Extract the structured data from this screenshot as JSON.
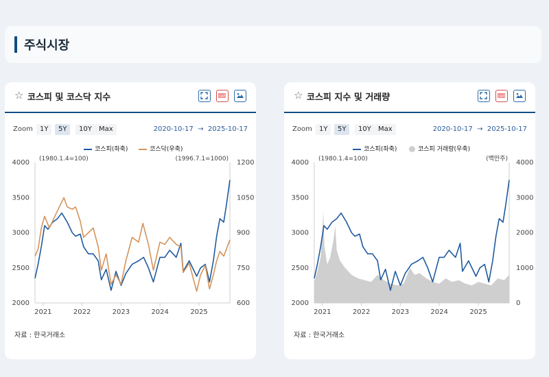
{
  "section": {
    "title": "주식시장"
  },
  "panels": [
    {
      "title": "코스피 및 코스닥 지수",
      "zoom_label": "Zoom",
      "zoom_options": [
        "1Y",
        "5Y",
        "10Y",
        "Max"
      ],
      "zoom_active": "5Y",
      "date_from": "2020-10-17",
      "date_arrow": "→",
      "date_to": "2025-10-17",
      "source": "자료 : 한국거래소",
      "icons": [
        "fullscreen-icon",
        "data-download-icon",
        "image-download-icon"
      ]
    },
    {
      "title": "코스피 지수 및 거래량",
      "zoom_label": "Zoom",
      "zoom_options": [
        "1Y",
        "5Y",
        "10Y",
        "Max"
      ],
      "zoom_active": "5Y",
      "date_from": "2020-10-17",
      "date_arrow": "→",
      "date_to": "2025-10-17",
      "source": "자료 : 한국거래소",
      "icons": [
        "fullscreen-icon",
        "data-download-icon",
        "image-download-icon"
      ]
    }
  ],
  "colors": {
    "kospi": "#1f5a9e",
    "kosdaq": "#d4935a",
    "volume": "#cfcfcf",
    "accent": "#0f4c81"
  },
  "chart_data": [
    {
      "type": "line",
      "x_axis_type": "date",
      "x_range": [
        "2020-10-17",
        "2025-10-17"
      ],
      "x_ticks": [
        "2021",
        "2022",
        "2023",
        "2024",
        "2025"
      ],
      "left_axis": {
        "range": [
          2000,
          4000
        ],
        "ticks": [
          "2000",
          "2500",
          "3000",
          "3500",
          "4000"
        ],
        "note": "(1980.1.4=100)"
      },
      "right_axis": {
        "range": [
          600,
          1200
        ],
        "ticks": [
          "600",
          "750",
          "900",
          "1050",
          "1200"
        ],
        "note": "(1996.7.1=1000)"
      },
      "grid": false,
      "legend_position": "top",
      "series": [
        {
          "name": "코스피(좌축)",
          "axis": "left",
          "points": [
            [
              "2020-10-17",
              2350
            ],
            [
              "2020-11-15",
              2550
            ],
            [
              "2020-12-15",
              2800
            ],
            [
              "2021-01-15",
              3100
            ],
            [
              "2021-02-15",
              3050
            ],
            [
              "2021-04-01",
              3150
            ],
            [
              "2021-05-15",
              3200
            ],
            [
              "2021-06-25",
              3280
            ],
            [
              "2021-08-15",
              3150
            ],
            [
              "2021-10-01",
              3000
            ],
            [
              "2021-11-01",
              2950
            ],
            [
              "2021-12-15",
              2980
            ],
            [
              "2022-01-15",
              2800
            ],
            [
              "2022-03-01",
              2700
            ],
            [
              "2022-04-15",
              2700
            ],
            [
              "2022-06-01",
              2600
            ],
            [
              "2022-07-01",
              2330
            ],
            [
              "2022-08-15",
              2480
            ],
            [
              "2022-09-30",
              2180
            ],
            [
              "2022-11-15",
              2450
            ],
            [
              "2023-01-01",
              2250
            ],
            [
              "2023-02-15",
              2420
            ],
            [
              "2023-04-15",
              2550
            ],
            [
              "2023-06-15",
              2600
            ],
            [
              "2023-08-01",
              2650
            ],
            [
              "2023-09-15",
              2500
            ],
            [
              "2023-10-31",
              2300
            ],
            [
              "2023-12-31",
              2650
            ],
            [
              "2024-02-15",
              2650
            ],
            [
              "2024-04-01",
              2750
            ],
            [
              "2024-06-01",
              2650
            ],
            [
              "2024-07-15",
              2850
            ],
            [
              "2024-08-05",
              2450
            ],
            [
              "2024-10-01",
              2600
            ],
            [
              "2024-12-10",
              2380
            ],
            [
              "2025-01-15",
              2500
            ],
            [
              "2025-03-01",
              2550
            ],
            [
              "2025-04-09",
              2300
            ],
            [
              "2025-05-15",
              2600
            ],
            [
              "2025-06-15",
              2950
            ],
            [
              "2025-07-15",
              3200
            ],
            [
              "2025-08-20",
              3150
            ],
            [
              "2025-09-15",
              3400
            ],
            [
              "2025-10-17",
              3750
            ]
          ]
        },
        {
          "name": "코스닥(우축)",
          "axis": "right",
          "points": [
            [
              "2020-10-17",
              800
            ],
            [
              "2020-11-15",
              830
            ],
            [
              "2020-12-15",
              920
            ],
            [
              "2021-01-15",
              970
            ],
            [
              "2021-03-01",
              920
            ],
            [
              "2021-05-01",
              980
            ],
            [
              "2021-07-15",
              1050
            ],
            [
              "2021-08-15",
              1010
            ],
            [
              "2021-10-01",
              1000
            ],
            [
              "2021-11-01",
              1010
            ],
            [
              "2021-12-15",
              950
            ],
            [
              "2022-01-15",
              880
            ],
            [
              "2022-03-01",
              900
            ],
            [
              "2022-04-15",
              920
            ],
            [
              "2022-06-01",
              840
            ],
            [
              "2022-07-01",
              740
            ],
            [
              "2022-08-15",
              810
            ],
            [
              "2022-09-30",
              680
            ],
            [
              "2022-11-15",
              720
            ],
            [
              "2023-01-01",
              680
            ],
            [
              "2023-02-15",
              780
            ],
            [
              "2023-04-15",
              880
            ],
            [
              "2023-06-15",
              860
            ],
            [
              "2023-07-25",
              940
            ],
            [
              "2023-09-15",
              850
            ],
            [
              "2023-10-31",
              740
            ],
            [
              "2023-12-31",
              860
            ],
            [
              "2024-02-15",
              850
            ],
            [
              "2024-04-01",
              880
            ],
            [
              "2024-06-01",
              850
            ],
            [
              "2024-07-15",
              840
            ],
            [
              "2024-08-05",
              730
            ],
            [
              "2024-10-01",
              770
            ],
            [
              "2024-12-10",
              650
            ],
            [
              "2025-01-15",
              720
            ],
            [
              "2025-03-01",
              760
            ],
            [
              "2025-04-09",
              660
            ],
            [
              "2025-05-15",
              720
            ],
            [
              "2025-06-15",
              780
            ],
            [
              "2025-07-15",
              820
            ],
            [
              "2025-08-20",
              800
            ],
            [
              "2025-09-15",
              830
            ],
            [
              "2025-10-17",
              870
            ]
          ]
        }
      ]
    },
    {
      "type": "line",
      "x_axis_type": "date",
      "x_range": [
        "2020-10-17",
        "2025-10-17"
      ],
      "x_ticks": [
        "2021",
        "2022",
        "2023",
        "2024",
        "2025"
      ],
      "left_axis": {
        "range": [
          2000,
          4000
        ],
        "ticks": [
          "2000",
          "2500",
          "3000",
          "3500",
          "4000"
        ],
        "note": "(1980.1.4=100)"
      },
      "right_axis": {
        "range": [
          0,
          4000
        ],
        "ticks": [
          "0",
          "1000",
          "2000",
          "3000",
          "4000"
        ],
        "note": "(백만주)"
      },
      "grid": false,
      "legend_position": "top",
      "series": [
        {
          "name": "코스피(좌축)",
          "axis": "left",
          "kind": "line",
          "points": [
            [
              "2020-10-17",
              2350
            ],
            [
              "2020-11-15",
              2550
            ],
            [
              "2020-12-15",
              2800
            ],
            [
              "2021-01-15",
              3100
            ],
            [
              "2021-02-15",
              3050
            ],
            [
              "2021-04-01",
              3150
            ],
            [
              "2021-05-15",
              3200
            ],
            [
              "2021-06-25",
              3280
            ],
            [
              "2021-08-15",
              3150
            ],
            [
              "2021-10-01",
              3000
            ],
            [
              "2021-11-01",
              2950
            ],
            [
              "2021-12-15",
              2980
            ],
            [
              "2022-01-15",
              2800
            ],
            [
              "2022-03-01",
              2700
            ],
            [
              "2022-04-15",
              2700
            ],
            [
              "2022-06-01",
              2600
            ],
            [
              "2022-07-01",
              2330
            ],
            [
              "2022-08-15",
              2480
            ],
            [
              "2022-09-30",
              2180
            ],
            [
              "2022-11-15",
              2450
            ],
            [
              "2023-01-01",
              2250
            ],
            [
              "2023-02-15",
              2420
            ],
            [
              "2023-04-15",
              2550
            ],
            [
              "2023-06-15",
              2600
            ],
            [
              "2023-08-01",
              2650
            ],
            [
              "2023-09-15",
              2500
            ],
            [
              "2023-10-31",
              2300
            ],
            [
              "2023-12-31",
              2650
            ],
            [
              "2024-02-15",
              2650
            ],
            [
              "2024-04-01",
              2750
            ],
            [
              "2024-06-01",
              2650
            ],
            [
              "2024-07-15",
              2850
            ],
            [
              "2024-08-05",
              2450
            ],
            [
              "2024-10-01",
              2600
            ],
            [
              "2024-12-10",
              2380
            ],
            [
              "2025-01-15",
              2500
            ],
            [
              "2025-03-01",
              2550
            ],
            [
              "2025-04-09",
              2300
            ],
            [
              "2025-05-15",
              2600
            ],
            [
              "2025-06-15",
              2950
            ],
            [
              "2025-07-15",
              3200
            ],
            [
              "2025-08-20",
              3150
            ],
            [
              "2025-09-15",
              3400
            ],
            [
              "2025-10-17",
              3750
            ]
          ]
        },
        {
          "name": "코스피 거래량(우축)",
          "axis": "right",
          "kind": "area",
          "points": [
            [
              "2020-10-17",
              600
            ],
            [
              "2020-11-15",
              900
            ],
            [
              "2020-12-15",
              1300
            ],
            [
              "2021-01-10",
              2600
            ],
            [
              "2021-01-20",
              1600
            ],
            [
              "2021-02-15",
              1100
            ],
            [
              "2021-03-15",
              1300
            ],
            [
              "2021-04-15",
              1800
            ],
            [
              "2021-05-01",
              2200
            ],
            [
              "2021-05-15",
              1500
            ],
            [
              "2021-06-15",
              1200
            ],
            [
              "2021-08-01",
              1000
            ],
            [
              "2021-10-01",
              800
            ],
            [
              "2021-12-01",
              700
            ],
            [
              "2022-02-01",
              650
            ],
            [
              "2022-04-01",
              600
            ],
            [
              "2022-06-01",
              800
            ],
            [
              "2022-08-01",
              650
            ],
            [
              "2022-10-01",
              550
            ],
            [
              "2022-12-01",
              500
            ],
            [
              "2023-02-01",
              550
            ],
            [
              "2023-04-01",
              1000
            ],
            [
              "2023-05-15",
              800
            ],
            [
              "2023-07-01",
              850
            ],
            [
              "2023-09-01",
              700
            ],
            [
              "2023-11-01",
              600
            ],
            [
              "2024-01-01",
              550
            ],
            [
              "2024-03-01",
              700
            ],
            [
              "2024-05-01",
              600
            ],
            [
              "2024-07-01",
              650
            ],
            [
              "2024-09-01",
              550
            ],
            [
              "2024-11-01",
              500
            ],
            [
              "2025-01-01",
              600
            ],
            [
              "2025-03-01",
              550
            ],
            [
              "2025-05-01",
              500
            ],
            [
              "2025-07-01",
              700
            ],
            [
              "2025-09-01",
              650
            ],
            [
              "2025-10-17",
              800
            ]
          ]
        }
      ]
    }
  ]
}
